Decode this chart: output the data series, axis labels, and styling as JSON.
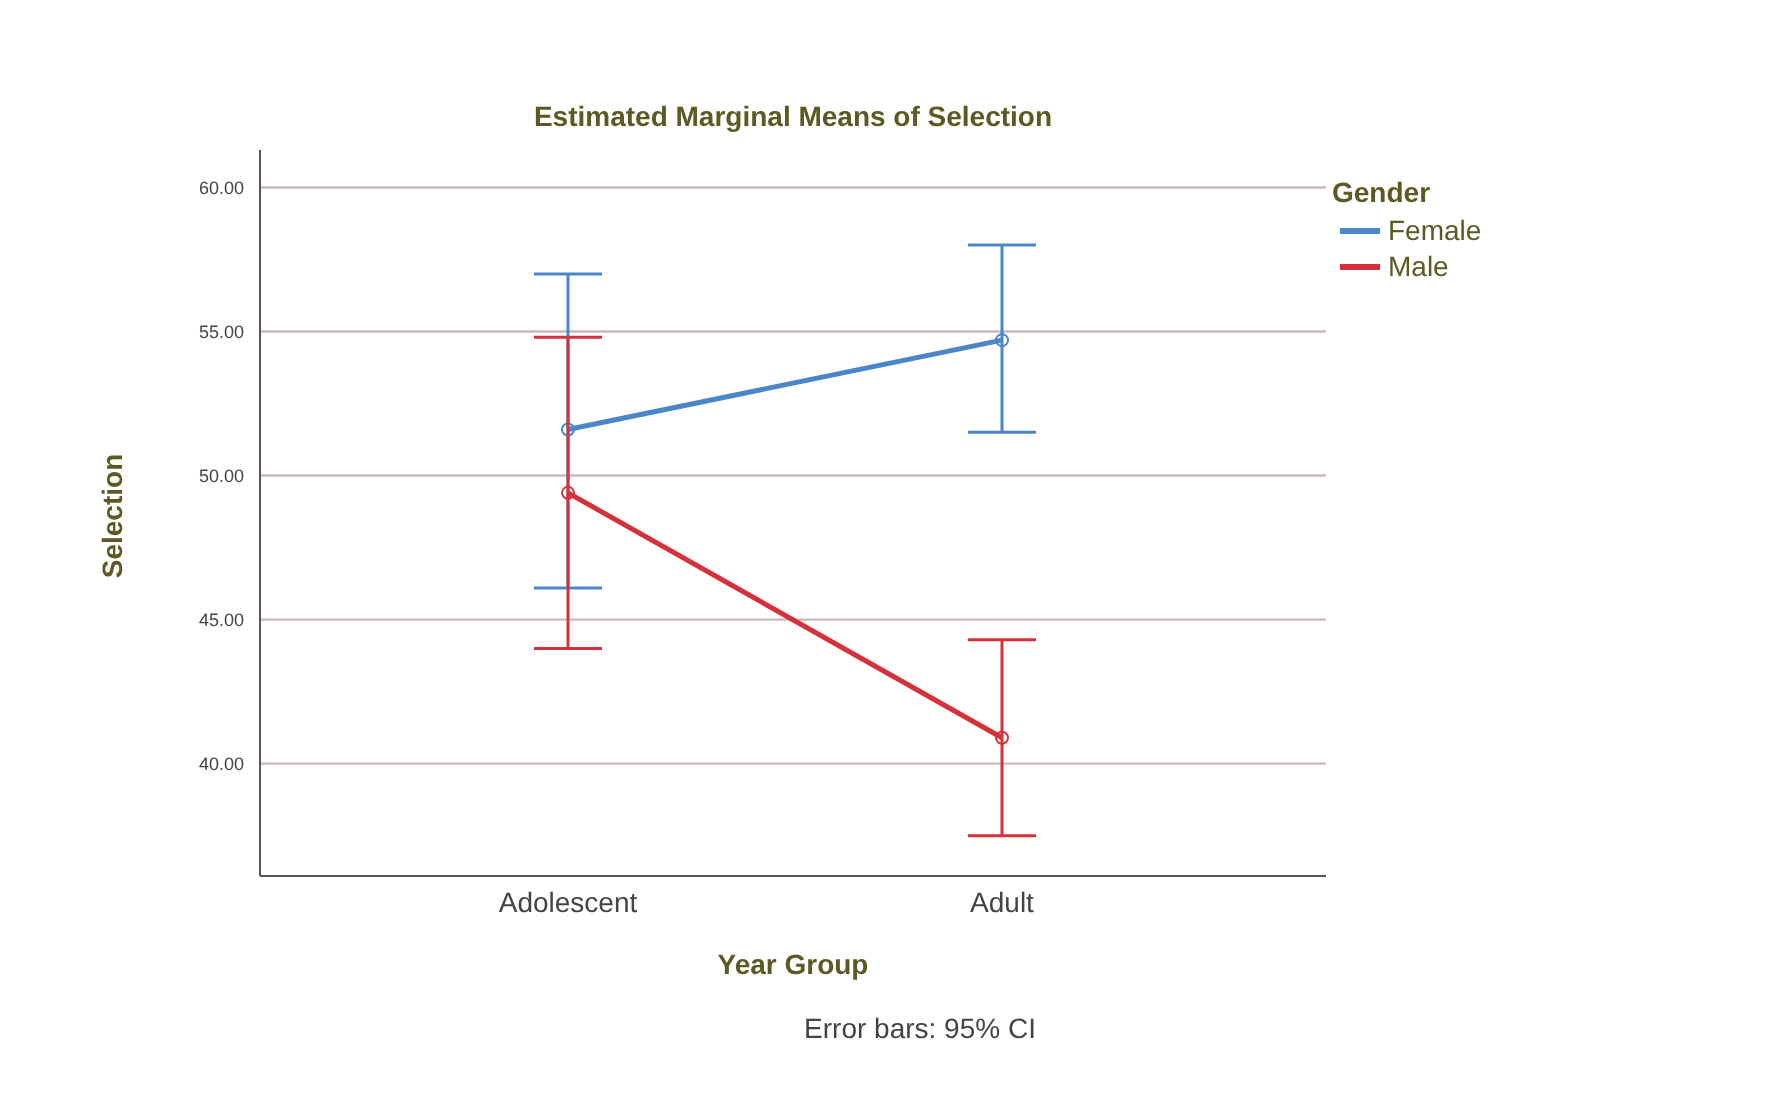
{
  "chart_data": {
    "type": "line",
    "title": "Estimated Marginal Means of Selection",
    "xlabel": "Year Group",
    "ylabel": "Selection",
    "legend_title": "Gender",
    "annotations": [
      "Error bars: 95% CI"
    ],
    "categories": [
      "Adolescent",
      "Adult"
    ],
    "series": [
      {
        "name": "Female",
        "color": "#4a86c8",
        "values": [
          51.6,
          54.7
        ],
        "errors": [
          [
            46.1,
            57.0
          ],
          [
            51.5,
            58.0
          ]
        ]
      },
      {
        "name": "Male",
        "color": "#d6303a",
        "values": [
          49.4,
          40.9
        ],
        "errors": [
          [
            44.0,
            54.8
          ],
          [
            37.5,
            44.3
          ]
        ]
      }
    ],
    "ylim": [
      36.1,
      61.3
    ],
    "yticks": [
      {
        "value": 40,
        "label": "40.00"
      },
      {
        "value": 45,
        "label": "45.00"
      },
      {
        "value": 50,
        "label": "50.00"
      },
      {
        "value": 55,
        "label": "55.00"
      },
      {
        "value": 60,
        "label": "60.00"
      }
    ],
    "grid": "y",
    "legend": "top right",
    "marker": "circle",
    "line_style": "solid"
  }
}
